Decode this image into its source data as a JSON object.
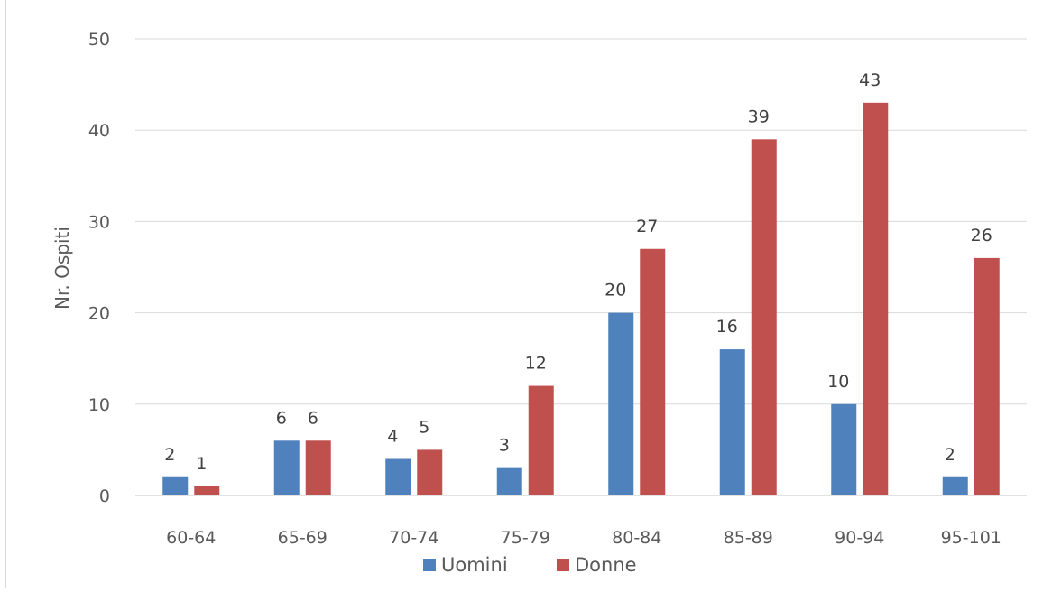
{
  "chart_data": {
    "type": "bar",
    "title": "",
    "xlabel": "",
    "ylabel": "Nr. Ospiti",
    "categories": [
      "60-64",
      "65-69",
      "70-74",
      "75-79",
      "80-84",
      "85-89",
      "90-94",
      "95-101"
    ],
    "series": [
      {
        "name": "Uomini",
        "values": [
          2,
          6,
          4,
          3,
          20,
          16,
          10,
          2
        ],
        "color": "#4f81bd"
      },
      {
        "name": "Donne",
        "values": [
          1,
          6,
          5,
          12,
          27,
          39,
          43,
          26
        ],
        "color": "#c0504d"
      }
    ],
    "ylim": [
      0,
      50
    ],
    "yticks": [
      0,
      10,
      20,
      30,
      40,
      50
    ],
    "grid": true,
    "legend": "bottom",
    "data_labels": true
  }
}
